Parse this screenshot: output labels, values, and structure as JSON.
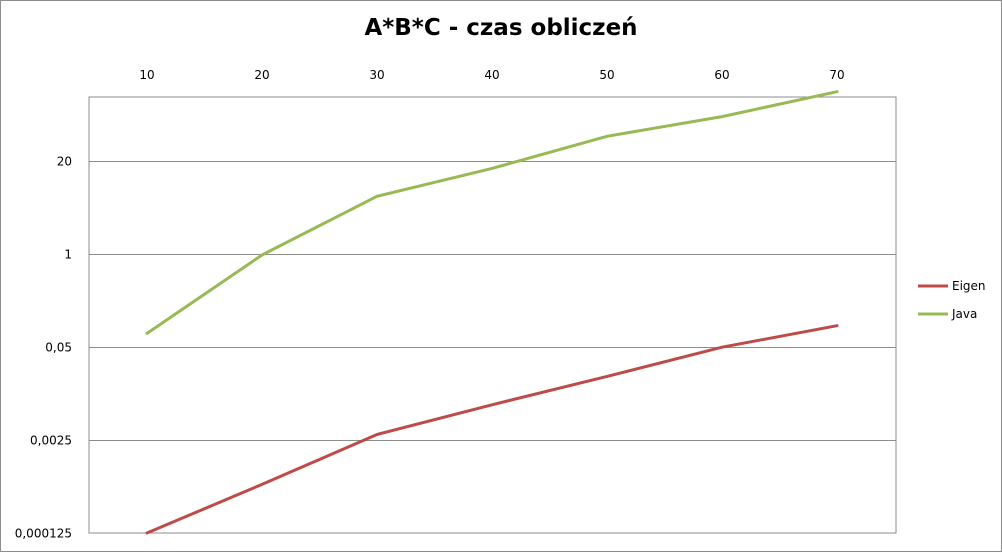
{
  "chart_data": {
    "type": "line",
    "title": "A*B*C - czas obliczeń",
    "xlabel": "",
    "ylabel": "",
    "x": [
      10,
      20,
      30,
      40,
      50,
      60,
      70
    ],
    "x_tick_labels": [
      "10",
      "20",
      "30",
      "40",
      "50",
      "60",
      "70"
    ],
    "x_axis_position": "top",
    "y_scale": "log",
    "ylim": [
      0.000125,
      160
    ],
    "y_ticks": [
      0.000125,
      0.0025,
      0.05,
      1,
      20
    ],
    "y_tick_labels": [
      "0,000125",
      "0,0025",
      "0,05",
      "1",
      "20"
    ],
    "grid": true,
    "legend": "right",
    "series": [
      {
        "name": "Eigen",
        "color": "#be4b48",
        "values": [
          0.000125,
          0.0006,
          0.003,
          0.0078,
          0.0195,
          0.05,
          0.1
        ]
      },
      {
        "name": "Java",
        "color": "#98b954",
        "values": [
          0.078,
          0.98,
          6.5,
          16,
          45,
          85,
          190
        ]
      }
    ]
  }
}
